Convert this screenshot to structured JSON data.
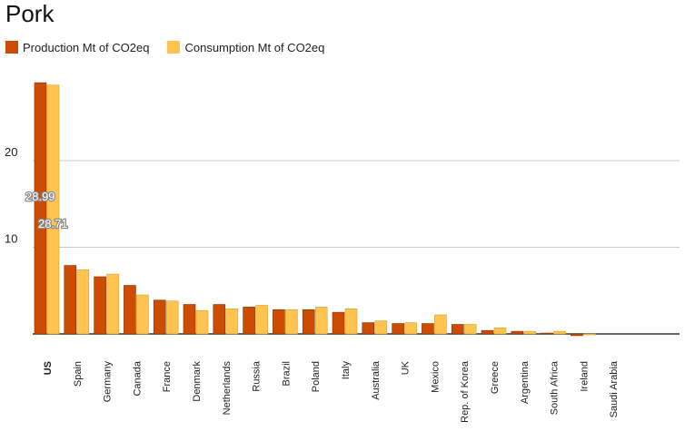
{
  "chart_data": {
    "type": "bar",
    "title": "Pork",
    "xlabel": "",
    "ylabel": "",
    "ylim": [
      0,
      30
    ],
    "yticks": [
      10,
      20
    ],
    "grid": true,
    "legend_position": "top-left",
    "categories": [
      "US",
      "Spain",
      "Germany",
      "Canada",
      "France",
      "Denmark",
      "Netherlands",
      "Russia",
      "Brazil",
      "Poland",
      "Italy",
      "Australia",
      "UK",
      "Mexico",
      "Rep. of Korea",
      "Greece",
      "Argentina",
      "South Africa",
      "Ireland",
      "Saudi Arabia"
    ],
    "series": [
      {
        "name": "Production Mt of CO2eq",
        "color": "#cc4c02",
        "values": [
          28.99,
          7.9,
          6.6,
          5.6,
          3.9,
          3.4,
          3.4,
          3.1,
          2.8,
          2.8,
          2.5,
          1.3,
          1.2,
          1.2,
          1.1,
          0.4,
          0.3,
          0.1,
          -0.2,
          0.0
        ]
      },
      {
        "name": "Consumption Mt of CO2eq",
        "color": "#fec44f",
        "values": [
          28.71,
          7.4,
          6.9,
          4.5,
          3.8,
          2.7,
          2.9,
          3.3,
          2.8,
          3.1,
          2.9,
          1.5,
          1.3,
          2.2,
          1.1,
          0.7,
          0.3,
          0.3,
          -0.1,
          0.0
        ]
      }
    ],
    "data_labels": [
      "28.99",
      "28.71"
    ]
  }
}
